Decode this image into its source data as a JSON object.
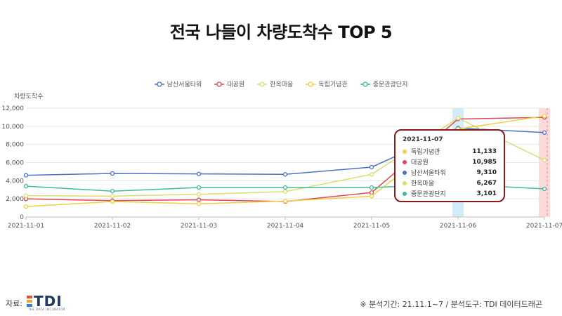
{
  "title": "전국 나들이 차량도착수 TOP 5",
  "colors": {
    "남산서울타워": "#4a72c9",
    "대공원": "#e0475a",
    "한옥마을": "#d8df6a",
    "독립기념관": "#f0d040",
    "중문관광단지": "#3dbb9a",
    "highlight_blue": "#d4ebfa",
    "highlight_red": "#fbdada",
    "tooltip_border": "#8b1a1a"
  },
  "chart_data": {
    "type": "line",
    "ylabel": "차량도착수",
    "ylim": [
      0,
      12000
    ],
    "yticks": [
      "0",
      "2,000",
      "4,000",
      "6,000",
      "8,000",
      "10,000",
      "12,000"
    ],
    "x": [
      "2021-11-01",
      "2021-11-02",
      "2021-11-03",
      "2021-11-04",
      "2021-11-05",
      "2021-11-06",
      "2021-11-07"
    ],
    "xtick_labels": [
      "2021-11-01",
      "2021-11-02",
      "2021-11-03",
      "2021-11-04",
      "2021-11-05",
      "2021-11-06",
      "2021-11-07"
    ],
    "grid": true,
    "legend_position": "top-center",
    "highlighted_dates": [
      "2021-11-06",
      "2021-11-07"
    ],
    "series": [
      {
        "name": "남산서울타워",
        "values": [
          4600,
          4800,
          4750,
          4700,
          5500,
          9800,
          9310
        ]
      },
      {
        "name": "대공원",
        "values": [
          2000,
          1800,
          1900,
          1700,
          2700,
          10800,
          10985
        ]
      },
      {
        "name": "한옥마을",
        "values": [
          2350,
          2300,
          2500,
          2800,
          4700,
          10900,
          6267
        ]
      },
      {
        "name": "독립기념관",
        "values": [
          1150,
          1700,
          1450,
          1750,
          2300,
          9700,
          11133
        ]
      },
      {
        "name": "중문관광단지",
        "values": [
          3400,
          2850,
          3250,
          3250,
          3250,
          3600,
          3101
        ]
      }
    ]
  },
  "tooltip": {
    "date": "2021-11-07",
    "rows": [
      {
        "name": "독립기념관",
        "value": "11,133",
        "color": "#f0d040"
      },
      {
        "name": "대공원",
        "value": "10,985",
        "color": "#e0475a"
      },
      {
        "name": "남산서울타워",
        "value": "9,310",
        "color": "#4a72c9"
      },
      {
        "name": "한옥마을",
        "value": "6,267",
        "color": "#d8df6a"
      },
      {
        "name": "중문관광단지",
        "value": "3,101",
        "color": "#3dbb9a"
      }
    ]
  },
  "footer": {
    "source_label": "자료:",
    "logo_text": "TDI",
    "logo_subtext": "THE DATA INCUBATOR",
    "note": "※ 분석기간: 21.11.1~7 / 분석도구: TDI 데이터드래곤"
  }
}
